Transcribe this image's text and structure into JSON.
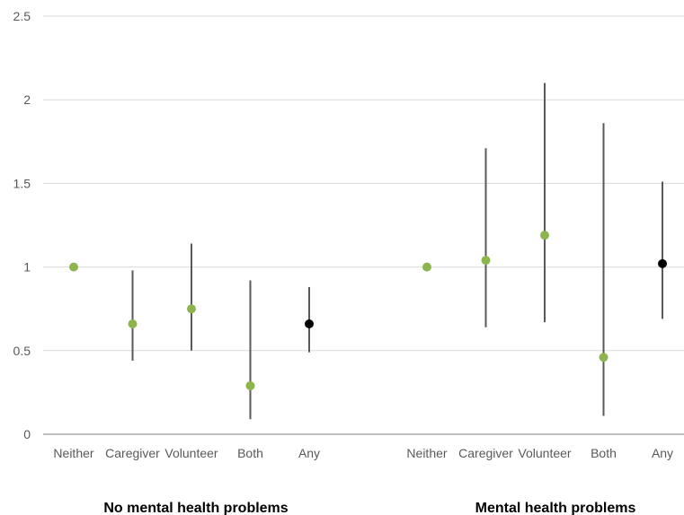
{
  "chart_data": {
    "type": "scatter",
    "ylim": [
      0,
      2.5
    ],
    "yticks": [
      "0",
      "0.5",
      "1",
      "1.5",
      "2",
      "2.5"
    ],
    "grid": true,
    "colors": {
      "point": "#8db54e",
      "any_point": "#000000",
      "error_bar": "#595959",
      "grid": "#d9d9d9",
      "axis": "#bfbfbf"
    },
    "groups": [
      {
        "label": "No mental health problems",
        "points": [
          {
            "category": "Neither",
            "value": 1.0,
            "low": null,
            "high": null
          },
          {
            "category": "Caregiver",
            "value": 0.66,
            "low": 0.44,
            "high": 0.98
          },
          {
            "category": "Volunteer",
            "value": 0.75,
            "low": 0.5,
            "high": 1.14
          },
          {
            "category": "Both",
            "value": 0.29,
            "low": 0.09,
            "high": 0.92
          },
          {
            "category": "Any",
            "value": 0.66,
            "low": 0.49,
            "high": 0.88
          }
        ]
      },
      {
        "label": "Mental health problems",
        "points": [
          {
            "category": "Neither",
            "value": 1.0,
            "low": null,
            "high": null
          },
          {
            "category": "Caregiver",
            "value": 1.04,
            "low": 0.64,
            "high": 1.71
          },
          {
            "category": "Volunteer",
            "value": 1.19,
            "low": 0.67,
            "high": 2.1
          },
          {
            "category": "Both",
            "value": 0.46,
            "low": 0.11,
            "high": 1.86
          },
          {
            "category": "Any",
            "value": 1.02,
            "low": 0.69,
            "high": 1.51
          }
        ]
      }
    ]
  }
}
